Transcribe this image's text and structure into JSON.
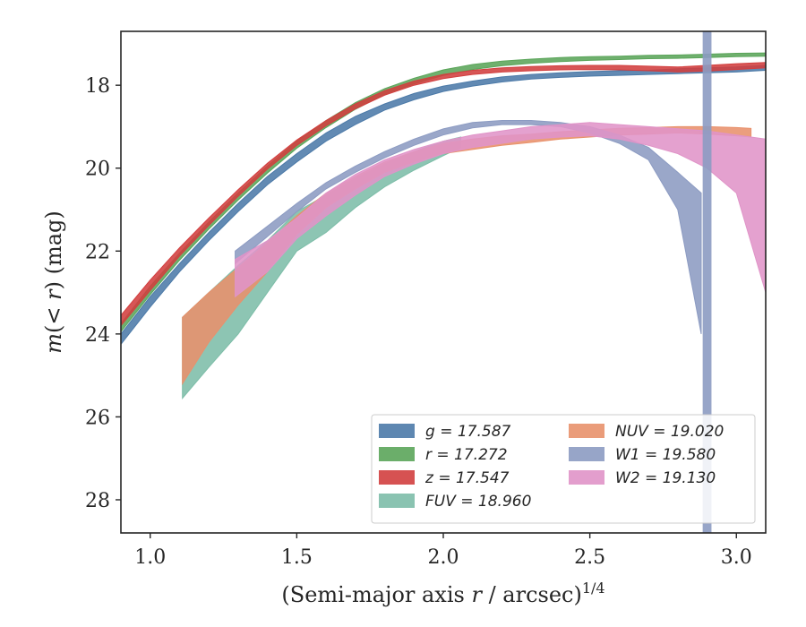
{
  "chart_data": {
    "type": "area",
    "xlabel": "(Semi-major axis r / arcsec)^1/4",
    "ylabel": "m(< r) (mag)",
    "xlim": [
      0.9,
      3.1
    ],
    "ylim": [
      28.8,
      16.7
    ],
    "y_inverted": true,
    "x_ticks": [
      1.0,
      1.5,
      2.0,
      2.5,
      3.0
    ],
    "x_tick_labels": [
      "1.0",
      "1.5",
      "2.0",
      "2.5",
      "3.0"
    ],
    "y_ticks": [
      18,
      20,
      22,
      24,
      26,
      28
    ],
    "y_tick_labels": [
      "18",
      "20",
      "22",
      "24",
      "26",
      "28"
    ],
    "grid": false,
    "legend_position": "bottom-right",
    "legend_columns": 2,
    "vertical_band": {
      "x": [
        2.885,
        2.915
      ],
      "color": "#8c9bc2"
    },
    "series": [
      {
        "name": "g = 17.587",
        "var": "g",
        "value": "17.587",
        "color": "#4c7aa8",
        "x": [
          0.9,
          1.0,
          1.1,
          1.2,
          1.3,
          1.4,
          1.5,
          1.6,
          1.7,
          1.8,
          1.9,
          2.0,
          2.1,
          2.2,
          2.3,
          2.4,
          2.5,
          2.6,
          2.7,
          2.8,
          2.9,
          3.0,
          3.1
        ],
        "lo": [
          24.0,
          23.1,
          22.3,
          21.55,
          20.85,
          20.2,
          19.65,
          19.15,
          18.75,
          18.45,
          18.2,
          18.02,
          17.9,
          17.8,
          17.74,
          17.7,
          17.67,
          17.65,
          17.64,
          17.6,
          17.58,
          17.56,
          17.52
        ],
        "hi": [
          24.25,
          23.35,
          22.5,
          21.75,
          21.05,
          20.4,
          19.85,
          19.35,
          18.95,
          18.6,
          18.35,
          18.15,
          18.02,
          17.92,
          17.85,
          17.81,
          17.78,
          17.76,
          17.74,
          17.72,
          17.7,
          17.68,
          17.64
        ]
      },
      {
        "name": "r = 17.272",
        "var": "r",
        "value": "17.272",
        "color": "#5ba55a",
        "x": [
          0.9,
          1.0,
          1.1,
          1.2,
          1.3,
          1.4,
          1.5,
          1.6,
          1.7,
          1.8,
          1.9,
          2.0,
          2.1,
          2.2,
          2.3,
          2.4,
          2.5,
          2.6,
          2.7,
          2.8,
          2.9,
          3.0,
          3.1
        ],
        "lo": [
          23.75,
          22.85,
          22.05,
          21.3,
          20.6,
          19.95,
          19.35,
          18.85,
          18.42,
          18.08,
          17.83,
          17.63,
          17.5,
          17.42,
          17.37,
          17.33,
          17.31,
          17.3,
          17.28,
          17.27,
          17.25,
          17.23,
          17.22
        ],
        "hi": [
          23.95,
          23.05,
          22.22,
          21.47,
          20.77,
          20.12,
          19.52,
          19.02,
          18.58,
          18.22,
          17.97,
          17.76,
          17.62,
          17.53,
          17.47,
          17.43,
          17.4,
          17.38,
          17.36,
          17.35,
          17.33,
          17.31,
          17.3
        ]
      },
      {
        "name": "z = 17.547",
        "var": "z",
        "value": "17.547",
        "color": "#d23f3f",
        "x": [
          0.9,
          1.0,
          1.1,
          1.2,
          1.3,
          1.4,
          1.5,
          1.6,
          1.7,
          1.8,
          1.9,
          2.0,
          2.1,
          2.2,
          2.3,
          2.4,
          2.5,
          2.6,
          2.7,
          2.8,
          2.9,
          3.0,
          3.1
        ],
        "lo": [
          23.55,
          22.7,
          21.92,
          21.2,
          20.52,
          19.88,
          19.32,
          18.85,
          18.45,
          18.13,
          17.9,
          17.74,
          17.64,
          17.58,
          17.55,
          17.53,
          17.52,
          17.52,
          17.54,
          17.56,
          17.52,
          17.48,
          17.45
        ],
        "hi": [
          23.8,
          22.95,
          22.12,
          21.38,
          20.68,
          20.02,
          19.45,
          18.98,
          18.57,
          18.24,
          18.0,
          17.84,
          17.74,
          17.68,
          17.65,
          17.63,
          17.62,
          17.63,
          17.65,
          17.68,
          17.66,
          17.62,
          17.58
        ]
      },
      {
        "name": "FUV = 18.960",
        "var": "FUV",
        "value": "18.960",
        "color": "#7dbda8",
        "x": [
          1.11,
          1.2,
          1.3,
          1.4,
          1.5,
          1.6,
          1.7,
          1.8,
          1.9,
          2.0,
          2.06
        ],
        "lo": [
          23.6,
          23.0,
          22.35,
          21.75,
          21.05,
          20.65,
          20.25,
          19.9,
          19.6,
          19.35,
          19.25
        ],
        "hi": [
          25.55,
          24.8,
          24.0,
          23.0,
          22.0,
          21.55,
          20.95,
          20.45,
          20.05,
          19.7,
          19.5
        ]
      },
      {
        "name": "NUV = 19.020",
        "var": "NUV",
        "value": "19.020",
        "color": "#e8916c",
        "x": [
          1.11,
          1.2,
          1.3,
          1.4,
          1.5,
          1.6,
          1.7,
          1.8,
          1.9,
          2.0,
          2.1,
          2.2,
          2.3,
          2.4,
          2.5,
          2.6,
          2.7,
          2.8,
          2.9,
          3.0,
          3.05
        ],
        "lo": [
          23.6,
          23.0,
          22.4,
          21.8,
          21.15,
          20.6,
          20.2,
          19.85,
          19.6,
          19.4,
          19.3,
          19.22,
          19.18,
          19.12,
          19.08,
          19.04,
          19.02,
          19.0,
          19.0,
          19.02,
          19.04
        ],
        "hi": [
          25.2,
          24.2,
          23.3,
          22.5,
          21.6,
          20.95,
          20.5,
          20.1,
          19.85,
          19.65,
          19.55,
          19.45,
          19.38,
          19.3,
          19.25,
          19.2,
          19.18,
          19.15,
          19.18,
          19.22,
          19.25
        ]
      },
      {
        "name": "W1 = 19.580",
        "var": "W1",
        "value": "19.580",
        "color": "#8c9bc2",
        "x": [
          1.29,
          1.4,
          1.5,
          1.6,
          1.7,
          1.8,
          1.9,
          2.0,
          2.1,
          2.2,
          2.3,
          2.4,
          2.5,
          2.6,
          2.7,
          2.8,
          2.88
        ],
        "lo": [
          22.0,
          21.4,
          20.85,
          20.35,
          19.95,
          19.6,
          19.3,
          19.05,
          18.9,
          18.85,
          18.85,
          18.9,
          19.0,
          19.2,
          19.5,
          20.1,
          20.6
        ],
        "hi": [
          22.3,
          21.65,
          21.05,
          20.5,
          20.1,
          19.75,
          19.45,
          19.2,
          19.03,
          18.95,
          18.95,
          19.0,
          19.15,
          19.4,
          19.8,
          21.0,
          24.0
        ]
      },
      {
        "name": "W2 = 19.130",
        "var": "W2",
        "value": "19.130",
        "color": "#e094c8",
        "x": [
          1.29,
          1.4,
          1.5,
          1.6,
          1.7,
          1.8,
          1.9,
          2.0,
          2.1,
          2.2,
          2.3,
          2.4,
          2.5,
          2.6,
          2.7,
          2.8,
          2.9,
          3.0,
          3.1
        ],
        "lo": [
          22.2,
          21.75,
          21.2,
          20.6,
          20.15,
          19.8,
          19.55,
          19.35,
          19.2,
          19.1,
          19.0,
          18.95,
          18.9,
          18.95,
          19.0,
          19.05,
          19.1,
          19.2,
          19.3
        ],
        "hi": [
          23.1,
          22.5,
          21.7,
          21.15,
          20.65,
          20.2,
          19.9,
          19.65,
          19.5,
          19.4,
          19.3,
          19.25,
          19.22,
          19.3,
          19.45,
          19.65,
          20.0,
          20.6,
          23.0
        ]
      }
    ]
  }
}
